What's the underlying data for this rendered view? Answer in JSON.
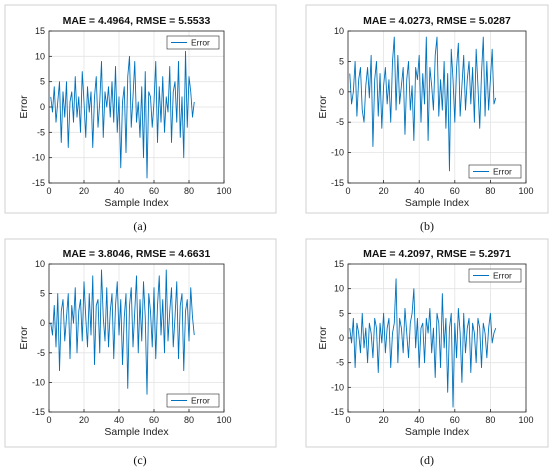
{
  "figure": {
    "captions": [
      "(a)",
      "(b)",
      "(c)",
      "(d)"
    ]
  },
  "chart_data": [
    {
      "type": "line",
      "title": "MAE = 4.4964, RMSE = 5.5533",
      "xlabel": "Sample Index",
      "ylabel": "Error",
      "xlim": [
        0,
        100
      ],
      "ylim": [
        -15,
        15
      ],
      "xticks": [
        0,
        20,
        40,
        60,
        80,
        100
      ],
      "yticks": [
        -15,
        -10,
        -5,
        0,
        5,
        10,
        15
      ],
      "grid": true,
      "legend_position": "top-right",
      "line_color": "#0072BD",
      "series": [
        {
          "name": "Error",
          "values": [
            2,
            -1,
            4,
            -3,
            1,
            5,
            -7,
            3,
            -2,
            5,
            -8,
            1,
            3,
            -3,
            6,
            -2,
            2,
            -5,
            7,
            1,
            -6,
            4,
            -1,
            3,
            -8,
            2,
            6,
            -4,
            1,
            9,
            -6,
            3,
            0,
            4,
            -2,
            5,
            -3,
            8,
            -5,
            2,
            -12,
            1,
            4,
            -9,
            6,
            10,
            -4,
            2,
            9,
            -3,
            1,
            -6,
            4,
            -10,
            7,
            -14,
            3,
            2,
            -4,
            1,
            9,
            -7,
            4,
            -3,
            6,
            -5,
            2,
            -1,
            8,
            -7,
            3,
            5,
            -3,
            9,
            -6,
            2,
            -10,
            11,
            -4,
            6,
            3,
            -2,
            1
          ]
        }
      ]
    },
    {
      "type": "line",
      "title": "MAE = 4.0273, RMSE = 5.0287",
      "xlabel": "Sample Index",
      "ylabel": "Error",
      "xlim": [
        0,
        100
      ],
      "ylim": [
        -15,
        10
      ],
      "xticks": [
        0,
        20,
        40,
        60,
        80,
        100
      ],
      "yticks": [
        -15,
        -10,
        -5,
        0,
        5,
        10
      ],
      "grid": true,
      "legend_position": "bottom-right",
      "line_color": "#0072BD",
      "series": [
        {
          "name": "Error",
          "values": [
            3,
            -2,
            0,
            5,
            -4,
            2,
            4,
            -3,
            -5,
            1,
            4,
            -1,
            6,
            -9,
            2,
            5,
            -4,
            3,
            -6,
            1,
            4,
            -2,
            2,
            -5,
            5,
            9,
            -3,
            6,
            -2,
            1,
            4,
            -7,
            2,
            5,
            -3,
            1,
            -8,
            4,
            2,
            6,
            -5,
            3,
            -2,
            9,
            -8,
            4,
            1,
            -3,
            6,
            9,
            -4,
            2,
            -3,
            5,
            -6,
            3,
            -13,
            7,
            2,
            -5,
            4,
            8,
            -4,
            1,
            6,
            -3,
            2,
            5,
            -2,
            4,
            -5,
            7,
            1,
            -6,
            3,
            9,
            -4,
            5,
            -3,
            2,
            7,
            -2,
            -1
          ]
        }
      ]
    },
    {
      "type": "line",
      "title": "MAE = 3.8046, RMSE = 4.6631",
      "xlabel": "Sample Index",
      "ylabel": "Error",
      "xlim": [
        0,
        100
      ],
      "ylim": [
        -15,
        10
      ],
      "xticks": [
        0,
        20,
        40,
        60,
        80,
        100
      ],
      "yticks": [
        -15,
        -10,
        -5,
        0,
        5,
        10
      ],
      "grid": true,
      "legend_position": "bottom-right",
      "line_color": "#0072BD",
      "series": [
        {
          "name": "Error",
          "values": [
            0,
            -2,
            3,
            -4,
            5,
            -8,
            2,
            4,
            -3,
            1,
            5,
            -6,
            3,
            0,
            6,
            -5,
            2,
            4,
            -3,
            7,
            1,
            -4,
            5,
            -2,
            8,
            -7,
            3,
            4,
            -5,
            9,
            1,
            -3,
            6,
            -4,
            2,
            5,
            -6,
            3,
            7,
            -2,
            4,
            -7,
            1,
            5,
            -11,
            3,
            6,
            -4,
            2,
            8,
            -5,
            4,
            -3,
            7,
            1,
            -12,
            5,
            2,
            -4,
            6,
            -6,
            3,
            8,
            -2,
            4,
            -5,
            9,
            -3,
            2,
            6,
            -4,
            1,
            7,
            -6,
            3,
            5,
            -8,
            2,
            4,
            -3,
            6,
            1,
            -2
          ]
        }
      ]
    },
    {
      "type": "line",
      "title": "MAE = 4.2097, RMSE = 5.2971",
      "xlabel": "Sample Index",
      "ylabel": "Error",
      "xlim": [
        0,
        100
      ],
      "ylim": [
        -15,
        15
      ],
      "xticks": [
        0,
        20,
        40,
        60,
        80,
        100
      ],
      "yticks": [
        -15,
        -10,
        -5,
        0,
        5,
        10,
        15
      ],
      "grid": true,
      "legend_position": "top-right",
      "line_color": "#0072BD",
      "series": [
        {
          "name": "Error",
          "values": [
            2,
            -1,
            4,
            -6,
            3,
            1,
            -3,
            5,
            -2,
            2,
            -5,
            3,
            1,
            -4,
            4,
            2,
            -7,
            3,
            -1,
            5,
            -3,
            2,
            4,
            -6,
            1,
            3,
            12,
            -5,
            4,
            2,
            -3,
            6,
            1,
            -4,
            3,
            5,
            10,
            -2,
            4,
            -6,
            2,
            3,
            -5,
            4,
            1,
            6,
            -3,
            2,
            -8,
            5,
            3,
            -6,
            9,
            -2,
            4,
            -11,
            2,
            5,
            -14,
            3,
            -4,
            6,
            1,
            -9,
            5,
            -3,
            2,
            4,
            -7,
            3,
            1,
            -5,
            4,
            2,
            -6,
            3,
            1,
            -4,
            2,
            5,
            -1,
            1,
            2
          ]
        }
      ]
    }
  ]
}
